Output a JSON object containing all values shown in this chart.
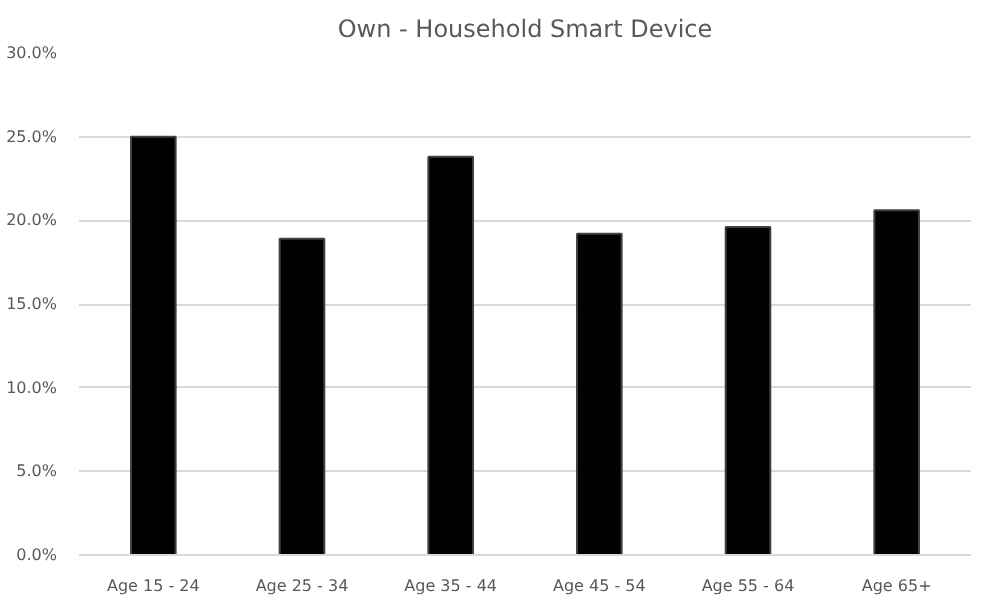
{
  "chart_data": {
    "type": "bar",
    "title": "Own - Household Smart Device",
    "categories": [
      "Age 15 - 24",
      "Age 25 - 34",
      "Age 35 - 44",
      "Age 45 - 54",
      "Age 55 - 64",
      "Age 65+"
    ],
    "values": [
      25.0,
      18.9,
      23.8,
      19.2,
      19.6,
      20.6
    ],
    "color": "#000000",
    "ylim": [
      0,
      30
    ],
    "yticks": [
      {
        "value": 0,
        "label": "0.0%"
      },
      {
        "value": 5,
        "label": "5.0%"
      },
      {
        "value": 10,
        "label": "10.0%"
      },
      {
        "value": 15,
        "label": "15.0%"
      },
      {
        "value": 20,
        "label": "20.0%"
      },
      {
        "value": 25,
        "label": "25.0%"
      },
      {
        "value": 30,
        "label": "30.0%"
      }
    ],
    "grid": "y"
  }
}
